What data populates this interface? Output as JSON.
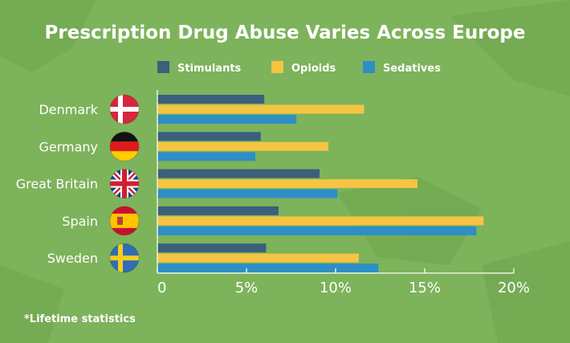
{
  "chart_data": {
    "type": "bar",
    "orientation": "horizontal",
    "title": "Prescription Drug Abuse Varies Across Europe",
    "categories": [
      "Denmark",
      "Germany",
      "Great Britain",
      "Spain",
      "Sweden"
    ],
    "series": [
      {
        "name": "Stimulants",
        "color": "#3b5f7c",
        "values": [
          6.0,
          5.8,
          9.1,
          6.8,
          6.1
        ]
      },
      {
        "name": "Opioids",
        "color": "#f6c443",
        "values": [
          11.6,
          9.6,
          14.6,
          18.3,
          11.3
        ]
      },
      {
        "name": "Sedatives",
        "color": "#2e8ec6",
        "values": [
          7.8,
          5.5,
          10.1,
          17.9,
          12.4
        ]
      }
    ],
    "xlim": [
      0,
      20
    ],
    "xticks": [
      0,
      5,
      10,
      15,
      20
    ],
    "xtick_labels": [
      "0",
      "5%",
      "10%",
      "15%",
      "20%"
    ],
    "unit": "%",
    "legend_position": "top",
    "grid": false,
    "category_icons": [
      "denmark-flag-icon",
      "germany-flag-icon",
      "great-britain-flag-icon",
      "spain-flag-icon",
      "sweden-flag-icon"
    ],
    "footnote": "*Lifetime statistics",
    "background_color": "#7db35b"
  }
}
